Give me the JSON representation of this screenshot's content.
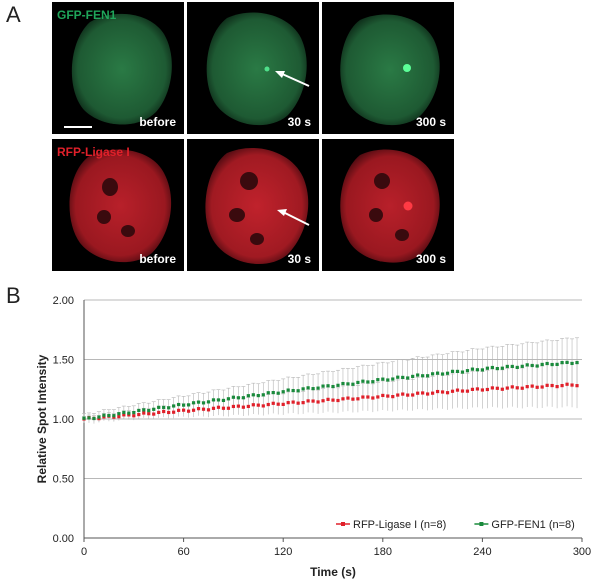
{
  "panel_a": {
    "letter": "A",
    "rows": [
      {
        "channel_label": "GFP-FEN1",
        "color": "#1fa55a",
        "cells": [
          {
            "time": "before"
          },
          {
            "time": "30 s"
          },
          {
            "time": "300 s"
          }
        ]
      },
      {
        "channel_label": "RFP-Ligase I",
        "color": "#e0202a",
        "cells": [
          {
            "time": "before"
          },
          {
            "time": "30 s"
          },
          {
            "time": "300 s"
          }
        ]
      }
    ]
  },
  "panel_b": {
    "letter": "B"
  },
  "chart_data": {
    "type": "scatter",
    "title": "",
    "xlabel": "Time (s)",
    "ylabel": "Relative Spot Intensity",
    "xlim": [
      0,
      300
    ],
    "ylim": [
      0,
      2.0
    ],
    "x_ticks": [
      "0",
      "60",
      "120",
      "180",
      "240",
      "300"
    ],
    "y_ticks": [
      "0.00",
      "0.50",
      "1.00",
      "1.50",
      "2.00"
    ],
    "grid": "horizontal",
    "legend_position": "bottom-right",
    "series": [
      {
        "name": "RFP-Ligase I (n=8)",
        "color": "#e0202a",
        "x_start": 0,
        "x_step": 3,
        "n_points": 100,
        "y_anchors": [
          [
            0,
            1.0
          ],
          [
            60,
            1.07
          ],
          [
            120,
            1.13
          ],
          [
            180,
            1.19
          ],
          [
            240,
            1.25
          ],
          [
            300,
            1.29
          ]
        ]
      },
      {
        "name": "GFP-FEN1 (n=8)",
        "color": "#1a8a3c",
        "x_start": 0,
        "x_step": 3,
        "n_points": 100,
        "y_anchors": [
          [
            0,
            1.0
          ],
          [
            60,
            1.12
          ],
          [
            120,
            1.23
          ],
          [
            180,
            1.33
          ],
          [
            240,
            1.42
          ],
          [
            300,
            1.48
          ]
        ]
      }
    ],
    "error_bars": "grey, growing with time"
  }
}
